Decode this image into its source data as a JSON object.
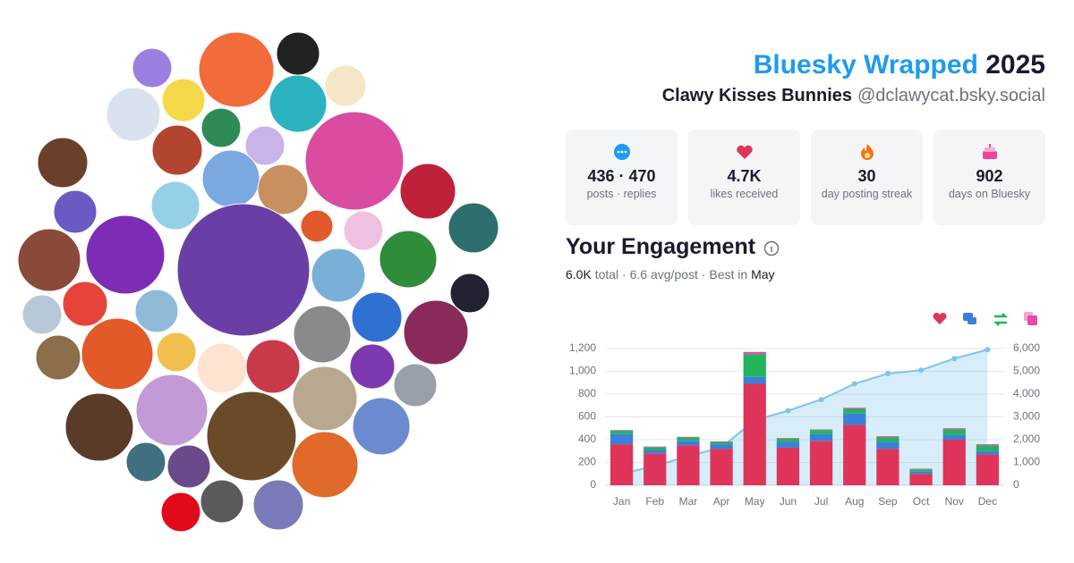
{
  "header": {
    "title": "Bluesky Wrapped",
    "year": "2025",
    "display_name": "Clawy Kisses Bunnies",
    "handle": "@dclawycat.bsky.social"
  },
  "stats": [
    {
      "value": "436 · 470",
      "label": "posts · replies"
    },
    {
      "value": "4.7K",
      "label": "likes received"
    },
    {
      "value": "30",
      "label": "day posting streak"
    },
    {
      "value": "902",
      "label": "days on Bluesky"
    }
  ],
  "engagement": {
    "title": "Your Engagement",
    "total": "6.0K",
    "total_label": "total",
    "avg": "6.6 avg/post",
    "best_label": "Best in",
    "best": "May"
  },
  "chart_data": {
    "type": "bar",
    "stacked": true,
    "grid": true,
    "categories": [
      "Jan",
      "Feb",
      "Mar",
      "Apr",
      "May",
      "Jun",
      "Jul",
      "Aug",
      "Sep",
      "Oct",
      "Nov",
      "Dec"
    ],
    "series": [
      {
        "color": "#e0355a",
        "values": [
          360,
          280,
          350,
          320,
          890,
          330,
          390,
          530,
          320,
          100,
          400,
          270
        ]
      },
      {
        "color": "#3b7fdc",
        "values": [
          90,
          30,
          40,
          40,
          60,
          50,
          60,
          100,
          60,
          20,
          40,
          30
        ]
      },
      {
        "color": "#22b55e",
        "values": [
          30,
          25,
          30,
          20,
          200,
          30,
          35,
          40,
          40,
          20,
          50,
          50
        ]
      },
      {
        "color": "#e84aa8",
        "values": [
          5,
          5,
          5,
          5,
          20,
          5,
          5,
          10,
          10,
          5,
          10,
          10
        ]
      },
      {
        "type": "line",
        "axis": "y2",
        "color": "#7cc4ec",
        "values": [
          500,
          850,
          1280,
          1660,
          2850,
          3270,
          3760,
          4450,
          4900,
          5050,
          5560,
          5950
        ]
      }
    ],
    "ylim": [
      0,
      1200
    ],
    "yticks": [
      0,
      200,
      400,
      600,
      800,
      {
        "value": 1000,
        "label": "1,000"
      },
      {
        "value": 1200,
        "label": "1,200"
      }
    ],
    "y2lim": [
      0,
      6000
    ],
    "y2ticks": [
      0,
      {
        "value": 1000,
        "label": "1,000"
      },
      {
        "value": 2000,
        "label": "2,000"
      },
      {
        "value": 3000,
        "label": "3,000"
      },
      {
        "value": 4000,
        "label": "4,000"
      },
      {
        "value": 5000,
        "label": "5,000"
      },
      {
        "value": 6000,
        "label": "6,000"
      }
    ]
  }
}
